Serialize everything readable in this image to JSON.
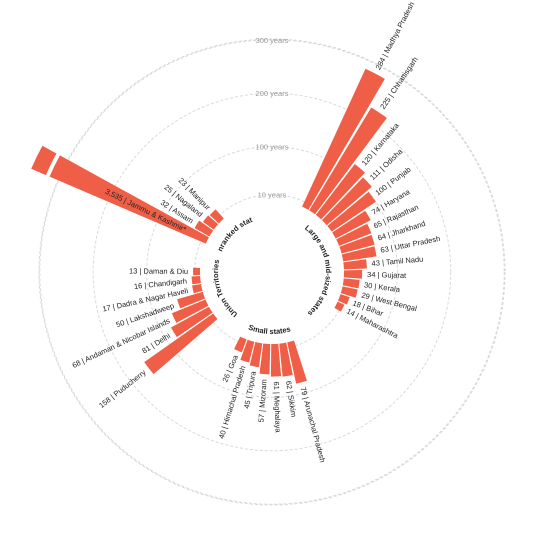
{
  "colors": {
    "bar": "#ef5f47",
    "ring": "#d9d9d9",
    "ring_text": "#9a9a9a",
    "text": "#222222",
    "background": "#ffffff"
  },
  "chart_data": {
    "type": "radial-bar",
    "unit": "years",
    "rings": [
      {
        "value": 10,
        "label": "10 years"
      },
      {
        "value": 100,
        "label": "100 years"
      },
      {
        "value": 200,
        "label": "200 years"
      },
      {
        "value": 300,
        "label": "300 years"
      }
    ],
    "groups": [
      {
        "name": "Large and mid-sized states",
        "items": [
          {
            "name": "Madhya Pradesh",
            "value": 284
          },
          {
            "name": "Chhattisgarh",
            "value": 225
          },
          {
            "name": "Karnataka",
            "value": 120
          },
          {
            "name": "Odisha",
            "value": 111
          },
          {
            "name": "Punjab",
            "value": 100
          },
          {
            "name": "Haryana",
            "value": 74
          },
          {
            "name": "Rajasthan",
            "value": 65
          },
          {
            "name": "Jharkhand",
            "value": 64
          },
          {
            "name": "Uttar Pradesh",
            "value": 63
          },
          {
            "name": "Tamil Nadu",
            "value": 43
          },
          {
            "name": "Gujarat",
            "value": 34
          },
          {
            "name": "Kerala",
            "value": 30
          },
          {
            "name": "West Bengal",
            "value": 29
          },
          {
            "name": "Bihar",
            "value": 18
          },
          {
            "name": "Maharashtra",
            "value": 14
          }
        ]
      },
      {
        "name": "Small states",
        "items": [
          {
            "name": "Arunachal Pradesh",
            "value": 79
          },
          {
            "name": "Sikkim",
            "value": 62
          },
          {
            "name": "Meghalaya",
            "value": 61
          },
          {
            "name": "Mizoram",
            "value": 57
          },
          {
            "name": "Tripura",
            "value": 45
          },
          {
            "name": "Himachal Pradesh",
            "value": 40
          },
          {
            "name": "Goa",
            "value": 26
          }
        ]
      },
      {
        "name": "Union Territories",
        "items": [
          {
            "name": "Puducherry",
            "value": 158
          },
          {
            "name": "Delhi",
            "value": 81
          },
          {
            "name": "Andaman & Nicobar Islands",
            "value": 68
          },
          {
            "name": "Lakshadweep",
            "value": 50
          },
          {
            "name": "Dadra & Nagar Haveli",
            "value": 17
          },
          {
            "name": "Chandigarh",
            "value": 16
          },
          {
            "name": "Daman & Diu",
            "value": 13
          }
        ]
      },
      {
        "name": "Unranked states",
        "items": [
          {
            "name": "Jammu & Kashmir*",
            "value": 3535,
            "display": "3,535"
          },
          {
            "name": "Assam",
            "value": 32
          },
          {
            "name": "Nagaland",
            "value": 25
          },
          {
            "name": "Manipur",
            "value": 23
          }
        ]
      }
    ]
  }
}
